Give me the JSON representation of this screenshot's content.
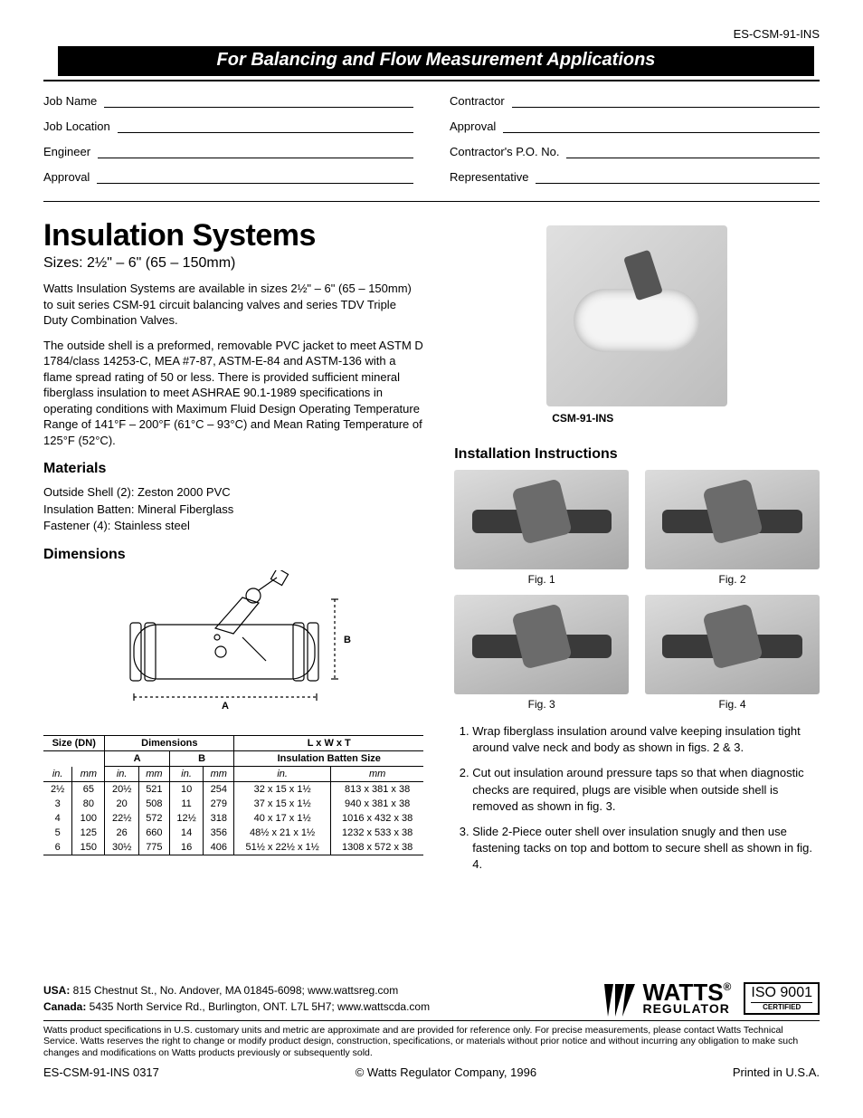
{
  "doc_id_top": "ES-CSM-91-INS",
  "banner": "For Balancing and Flow Measurement Applications",
  "job_fields_left": [
    "Job Name",
    "Job Location",
    "Engineer",
    "Approval"
  ],
  "job_fields_right": [
    "Contractor",
    "Approval",
    "Contractor's P.O. No.",
    "Representative"
  ],
  "title": "Insulation Systems",
  "sizes_line": "Sizes: 2½\" – 6\" (65 – 150mm)",
  "intro_p1": "Watts Insulation Systems are available in sizes 2½\" – 6\" (65 – 150mm) to suit series CSM-91 circuit balancing valves and series TDV Triple Duty Combination Valves.",
  "intro_p2": "The outside shell is a preformed, removable PVC jacket to meet ASTM D 1784/class 14253-C, MEA #7-87, ASTM-E-84 and ASTM-136 with a flame spread rating of 50 or less. There is provided sufficient mineral fiberglass insulation to meet ASHRAE 90.1-1989 specifications in operating conditions with Maximum Fluid Design Operating Temperature Range of 141°F – 200°F (61°C – 93°C) and Mean Rating Temperature of 125°F (52°C).",
  "materials_heading": "Materials",
  "materials": [
    "Outside Shell (2): Zeston 2000 PVC",
    "Insulation Batten: Mineral Fiberglass",
    "Fastener (4): Stainless steel"
  ],
  "dimensions_heading": "Dimensions",
  "table": {
    "head_size": "Size (DN)",
    "head_dims": "Dimensions",
    "head_lwt": "L x W x T",
    "sub_a": "A",
    "sub_b": "B",
    "sub_ibs": "Insulation Batten Size",
    "unit_in": "in.",
    "unit_mm": "mm",
    "rows": [
      {
        "size_in": "2½",
        "size_mm": "65",
        "a_in": "20½",
        "a_mm": "521",
        "b_in": "10",
        "b_mm": "254",
        "ibs_in": "32 x 15 x 1½",
        "ibs_mm": "813 x 381 x 38"
      },
      {
        "size_in": "3",
        "size_mm": "80",
        "a_in": "20",
        "a_mm": "508",
        "b_in": "11",
        "b_mm": "279",
        "ibs_in": "37 x 15 x 1½",
        "ibs_mm": "940 x 381 x 38"
      },
      {
        "size_in": "4",
        "size_mm": "100",
        "a_in": "22½",
        "a_mm": "572",
        "b_in": "12½",
        "b_mm": "318",
        "ibs_in": "40 x 17 x 1½",
        "ibs_mm": "1016 x 432 x 38"
      },
      {
        "size_in": "5",
        "size_mm": "125",
        "a_in": "26",
        "a_mm": "660",
        "b_in": "14",
        "b_mm": "356",
        "ibs_in": "48½ x 21 x 1½",
        "ibs_mm": "1232 x 533 x 38"
      },
      {
        "size_in": "6",
        "size_mm": "150",
        "a_in": "30½",
        "a_mm": "775",
        "b_in": "16",
        "b_mm": "406",
        "ibs_in": "51½ x 22½ x 1½",
        "ibs_mm": "1308 x 572 x 38"
      }
    ]
  },
  "product_label": "CSM-91-INS",
  "install_heading": "Installation Instructions",
  "figs": [
    "Fig. 1",
    "Fig. 2",
    "Fig. 3",
    "Fig. 4"
  ],
  "steps": [
    "Wrap fiberglass insulation around valve keeping insulation tight around valve neck and body as shown in figs. 2 & 3.",
    "Cut out insulation around pressure taps so that when diagnostic checks are required, plugs are visible when outside shell is removed as shown in fig. 3.",
    "Slide 2-Piece outer shell over insulation snugly and then use fastening tacks on top and bottom to secure shell as shown in fig. 4."
  ],
  "addr_usa_label": "USA:",
  "addr_usa": " 815 Chestnut St., No. Andover, MA 01845-6098; www.wattsreg.com",
  "addr_can_label": "Canada:",
  "addr_can": " 5435 North Service Rd., Burlington, ONT. L7L 5H7; www.wattscda.com",
  "logo_top": "WATTS",
  "logo_reg": "®",
  "logo_bottom": "REGULATOR",
  "iso_text": "ISO 9001",
  "iso_cert": "CERTIFIED",
  "disclaimer": "Watts product specifications in U.S. customary units and metric are approximate and are provided for reference only.  For precise measurements, please contact Watts Technical Service.  Watts reserves the right to change or modify product design, construction, specifications, or materials without prior notice and without incurring any obligation to make such changes and modifications on Watts products previously or subsequently sold.",
  "bottom_left": "ES-CSM-91-INS 0317",
  "bottom_center": "© Watts Regulator Company, 1996",
  "bottom_right": "Printed in U.S.A."
}
